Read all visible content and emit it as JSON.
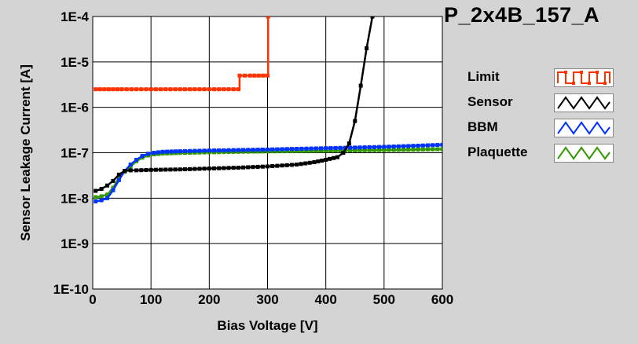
{
  "window": {
    "bg_color": "#d4d4d4"
  },
  "chart_data": {
    "type": "line",
    "title": "P_2x4B_157_A",
    "xlabel": "Bias Voltage [V]",
    "ylabel": "Sensor Leakage Current [A]",
    "xlim": [
      0,
      600
    ],
    "ylim": [
      1e-10,
      0.0001
    ],
    "yscale": "log",
    "grid": true,
    "legend_position": "right",
    "xticks": [
      "0",
      "100",
      "200",
      "300",
      "400",
      "500",
      "600"
    ],
    "yticks": [
      "1E-10",
      "1E-9",
      "1E-8",
      "1E-7",
      "1E-6",
      "1E-5",
      "1E-4"
    ],
    "series": [
      {
        "name": "Limit",
        "color": "#ff3300",
        "x": [
          5,
          50,
          100,
          150,
          200,
          250,
          252,
          270,
          300,
          301
        ],
        "y": [
          2.5e-06,
          2.5e-06,
          2.5e-06,
          2.5e-06,
          2.5e-06,
          2.5e-06,
          5e-06,
          5e-06,
          5e-06,
          0.0001
        ],
        "step": true
      },
      {
        "name": "Sensor",
        "color": "#000000",
        "x": [
          5,
          15,
          25,
          35,
          45,
          55,
          65,
          75,
          100,
          150,
          200,
          250,
          300,
          350,
          380,
          400,
          420,
          430,
          440,
          450,
          460,
          470,
          480
        ],
        "y": [
          1.45e-08,
          1.6e-08,
          1.9e-08,
          2.4e-08,
          3.3e-08,
          4e-08,
          4.1e-08,
          4.1e-08,
          4.2e-08,
          4.3e-08,
          4.5e-08,
          4.7e-08,
          5e-08,
          5.5e-08,
          6.2e-08,
          7e-08,
          8e-08,
          1e-07,
          1.6e-07,
          5e-07,
          3e-06,
          2e-05,
          0.0001
        ]
      },
      {
        "name": "BBM",
        "color": "#0033ff",
        "x": [
          5,
          15,
          25,
          35,
          45,
          55,
          65,
          75,
          85,
          95,
          105,
          120,
          150,
          200,
          250,
          300,
          350,
          400,
          450,
          500,
          550,
          600
        ],
        "y": [
          8.5e-09,
          9e-09,
          1e-08,
          1.5e-08,
          2.5e-08,
          4e-08,
          5.5e-08,
          7e-08,
          8.5e-08,
          9.5e-08,
          1e-07,
          1.05e-07,
          1.08e-07,
          1.12e-07,
          1.15e-07,
          1.18e-07,
          1.22e-07,
          1.26e-07,
          1.3e-07,
          1.35e-07,
          1.42e-07,
          1.5e-07
        ]
      },
      {
        "name": "Plaquette",
        "color": "#339900",
        "x": [
          5,
          15,
          25,
          35,
          45,
          55,
          65,
          75,
          85,
          95,
          105,
          120,
          150,
          200,
          250,
          300,
          350,
          400,
          450,
          500,
          550,
          600
        ],
        "y": [
          1.05e-08,
          1.1e-08,
          1.2e-08,
          1.7e-08,
          2.8e-08,
          3.8e-08,
          5e-08,
          6.5e-08,
          7.8e-08,
          8.7e-08,
          9.2e-08,
          9.6e-08,
          9.9e-08,
          1.02e-07,
          1.05e-07,
          1.07e-07,
          1.09e-07,
          1.11e-07,
          1.13e-07,
          1.15e-07,
          1.17e-07,
          1.2e-07
        ]
      }
    ]
  }
}
